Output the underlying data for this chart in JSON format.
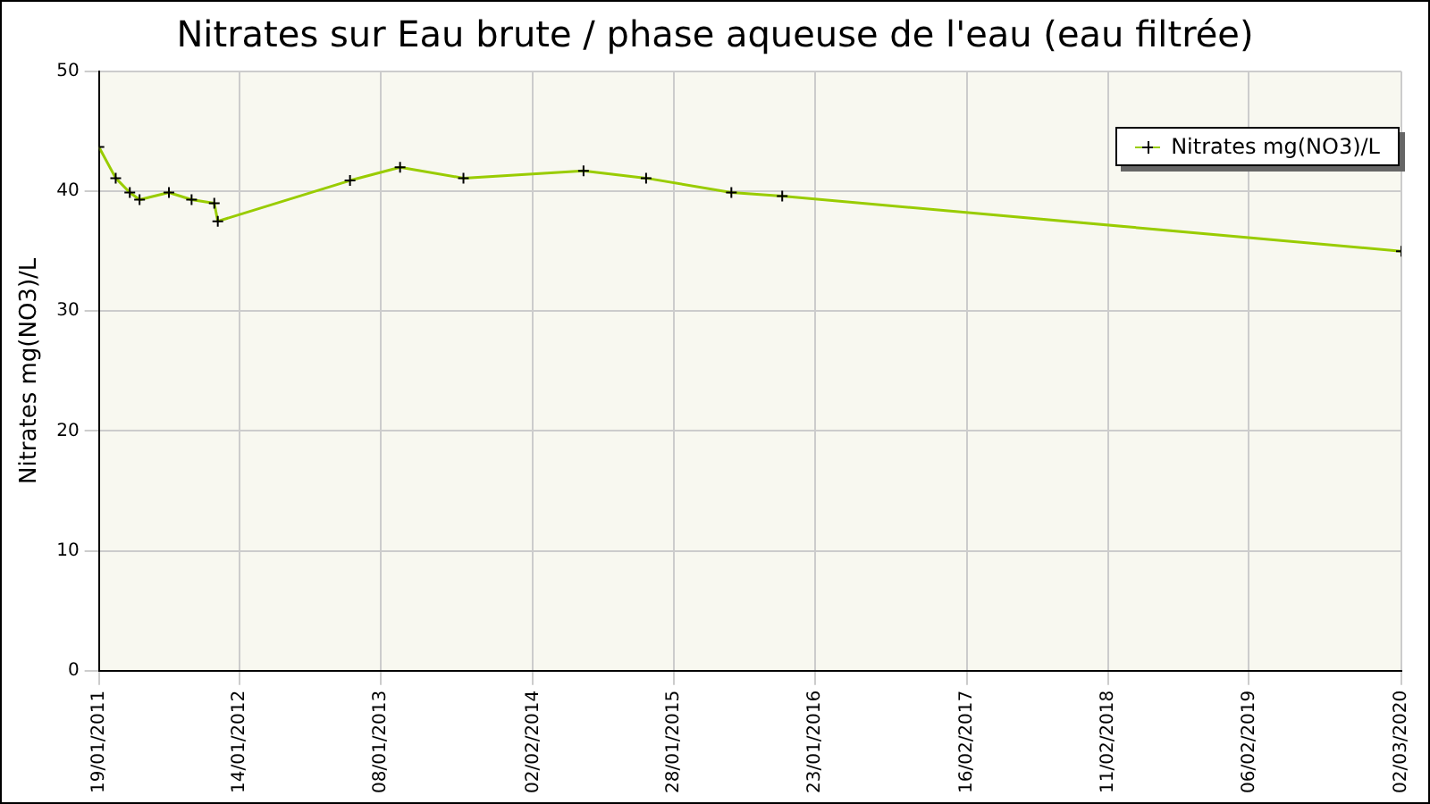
{
  "chart_data": {
    "type": "line",
    "title": "Nitrates sur Eau brute / phase aqueuse de l'eau (eau filtrée)",
    "ylabel": "Nitrates mg(NO3)/L",
    "x": [
      "2011-01-19",
      "2011-03-03",
      "2011-04-08",
      "2011-05-03",
      "2011-07-17",
      "2011-09-13",
      "2011-11-10",
      "2011-11-19",
      "2012-10-22",
      "2013-02-27",
      "2013-08-08",
      "2014-06-11",
      "2014-11-18",
      "2015-06-24",
      "2015-11-01",
      "2020-03-02"
    ],
    "series": [
      {
        "name": "Nitrates mg(NO3)/L",
        "color": "#99cc00",
        "values": [
          43.7,
          41.1,
          39.9,
          39.3,
          39.9,
          39.3,
          39.0,
          37.5,
          40.9,
          42.0,
          41.1,
          41.7,
          41.1,
          39.9,
          39.6,
          35.0
        ]
      }
    ],
    "xlim": [
      "2011-01-19",
      "2020-03-02"
    ],
    "xticks": [
      {
        "value": "2011-01-19",
        "label": "19/01/2011"
      },
      {
        "value": "2012-01-14",
        "label": "14/01/2012"
      },
      {
        "value": "2013-01-08",
        "label": "08/01/2013"
      },
      {
        "value": "2014-02-02",
        "label": "02/02/2014"
      },
      {
        "value": "2015-01-28",
        "label": "28/01/2015"
      },
      {
        "value": "2016-01-23",
        "label": "23/01/2016"
      },
      {
        "value": "2017-02-16",
        "label": "16/02/2017"
      },
      {
        "value": "2018-02-11",
        "label": "11/02/2018"
      },
      {
        "value": "2019-02-06",
        "label": "06/02/2019"
      },
      {
        "value": "2020-03-02",
        "label": "02/03/2020"
      }
    ],
    "ylim": [
      0,
      50
    ],
    "yticks": [
      0,
      10,
      20,
      30,
      40,
      50
    ],
    "grid": true,
    "legend": "top right",
    "marker": "cross",
    "line_style": "solid"
  }
}
